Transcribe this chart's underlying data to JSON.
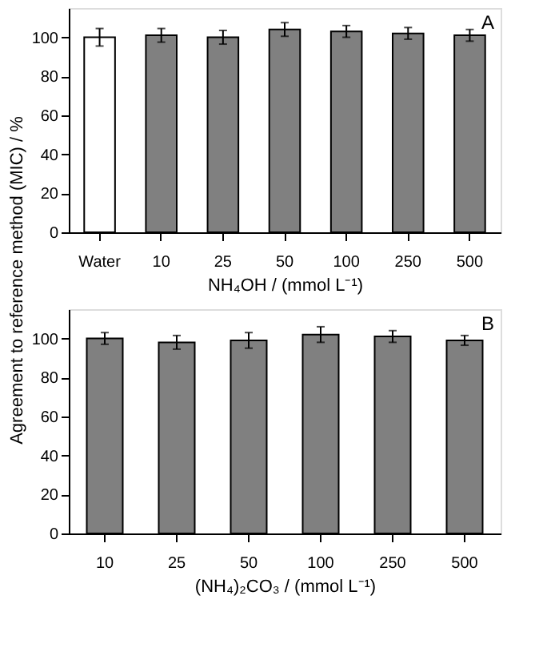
{
  "chart_data": [
    {
      "type": "bar",
      "categories": [
        "Water",
        "10",
        "25",
        "50",
        "100",
        "250",
        "500"
      ],
      "values": [
        100,
        101,
        100,
        104,
        103,
        102,
        101
      ],
      "errors": [
        4.5,
        3.5,
        3.5,
        3.5,
        3,
        3,
        3
      ],
      "colors": [
        "#ffffff",
        "#808080",
        "#808080",
        "#808080",
        "#808080",
        "#808080",
        "#808080"
      ],
      "xlabel": "NH₄OH / (mmol L⁻¹)",
      "ylabel": "Agreement to reference method (MIC) / %",
      "ylim": [
        0,
        115
      ],
      "yticks": [
        0,
        20,
        40,
        60,
        80,
        100
      ],
      "grid": false,
      "annotations": [
        "A"
      ]
    },
    {
      "type": "bar",
      "categories": [
        "10",
        "25",
        "50",
        "100",
        "250",
        "500"
      ],
      "values": [
        100,
        98,
        99,
        102,
        101,
        99
      ],
      "errors": [
        3,
        3.5,
        4,
        4,
        3,
        2.5
      ],
      "colors": [
        "#808080",
        "#808080",
        "#808080",
        "#808080",
        "#808080",
        "#808080"
      ],
      "xlabel": "(NH₄)₂CO₃ / (mmol L⁻¹)",
      "ylim": [
        0,
        115
      ],
      "yticks": [
        0,
        20,
        40,
        60,
        80,
        100
      ],
      "grid": false,
      "annotations": [
        "B"
      ]
    }
  ]
}
